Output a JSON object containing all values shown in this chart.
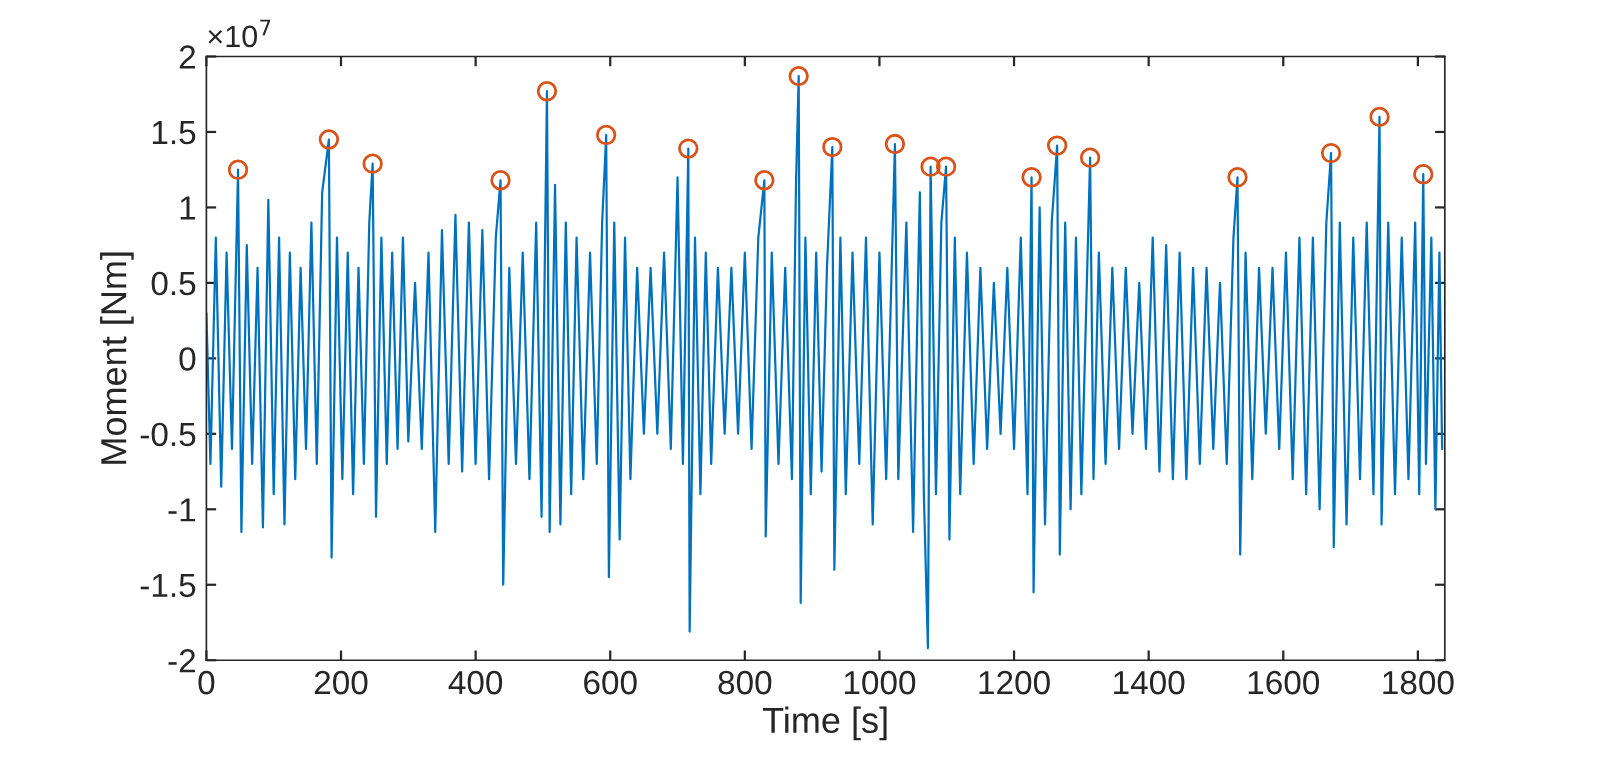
{
  "chart_data": {
    "type": "line",
    "xlabel": "Time [s]",
    "ylabel": "Moment [Nm]",
    "annotations": [
      "×10$^{7}$"
    ],
    "xlim": [
      0,
      1840
    ],
    "xticks": [
      0,
      200,
      400,
      600,
      800,
      1000,
      1200,
      1400,
      1600,
      1800
    ],
    "ylim": [
      -2,
      2
    ],
    "yticks": [
      -2,
      -1.5,
      -1,
      -0.5,
      0,
      0.5,
      1,
      1.5,
      2
    ],
    "grid": false,
    "legend": false,
    "series": [
      {
        "color": "#0072bd",
        "line_style": "solid",
        "x": [
          0,
          6,
          14,
          22,
          30,
          38,
          47,
          52,
          60,
          68,
          76,
          84,
          92,
          100,
          108,
          116,
          124,
          132,
          140,
          148,
          156,
          164,
          172,
          182,
          186,
          194,
          202,
          210,
          218,
          226,
          234,
          242,
          247,
          252,
          260,
          268,
          276,
          284,
          292,
          300,
          310,
          320,
          330,
          340,
          350,
          360,
          370,
          380,
          390,
          400,
          410,
          420,
          430,
          437,
          441,
          450,
          460,
          470,
          480,
          490,
          498,
          506,
          510,
          518,
          526,
          534,
          542,
          550,
          560,
          570,
          580,
          588,
          594,
          598,
          606,
          614,
          622,
          630,
          640,
          650,
          660,
          670,
          680,
          690,
          700,
          708,
          716,
          718,
          726,
          734,
          742,
          750,
          760,
          770,
          780,
          790,
          800,
          810,
          820,
          829,
          831,
          840,
          850,
          860,
          870,
          876,
          880,
          883,
          890,
          898,
          906,
          914,
          922,
          930,
          933,
          942,
          950,
          960,
          970,
          980,
          990,
          1000,
          1010,
          1023,
          1028,
          1040,
          1050,
          1060,
          1066,
          1072,
          1076,
          1084,
          1092,
          1099,
          1104,
          1112,
          1120,
          1130,
          1140,
          1150,
          1160,
          1170,
          1180,
          1190,
          1200,
          1210,
          1220,
          1226,
          1229,
          1238,
          1246,
          1256,
          1264,
          1268,
          1276,
          1284,
          1292,
          1300,
          1313,
          1318,
          1326,
          1336,
          1346,
          1356,
          1366,
          1376,
          1386,
          1396,
          1406,
          1416,
          1426,
          1436,
          1446,
          1456,
          1466,
          1476,
          1486,
          1496,
          1506,
          1516,
          1526,
          1532,
          1536,
          1544,
          1554,
          1564,
          1574,
          1584,
          1594,
          1604,
          1614,
          1624,
          1634,
          1644,
          1654,
          1664,
          1671,
          1675,
          1684,
          1694,
          1704,
          1714,
          1724,
          1734,
          1743,
          1746,
          1756,
          1766,
          1776,
          1786,
          1796,
          1802,
          1808,
          1812,
          1820,
          1826,
          1832,
          1836
        ],
        "values": [
          0.3,
          -0.7,
          0.8,
          -0.85,
          0.7,
          -0.6,
          1.25,
          -1.15,
          0.75,
          -0.7,
          0.6,
          -1.12,
          1.05,
          -0.9,
          0.8,
          -1.1,
          0.7,
          -0.8,
          0.6,
          -0.6,
          0.9,
          -0.7,
          1.1,
          1.45,
          -1.32,
          0.8,
          -0.8,
          0.7,
          -0.9,
          0.6,
          -0.7,
          0.9,
          1.29,
          -1.05,
          0.8,
          -0.7,
          0.7,
          -0.6,
          0.8,
          -0.55,
          0.5,
          -0.6,
          0.7,
          -1.15,
          0.85,
          -0.7,
          0.95,
          -0.75,
          0.9,
          -0.7,
          0.85,
          -0.8,
          0.8,
          1.18,
          -1.5,
          0.6,
          -0.7,
          0.7,
          -0.8,
          0.9,
          -1.05,
          1.77,
          -1.15,
          1.15,
          -1.1,
          0.9,
          -0.9,
          0.8,
          -0.8,
          0.7,
          -0.7,
          0.9,
          1.48,
          -1.45,
          0.9,
          -1.2,
          0.8,
          -0.8,
          0.6,
          -0.5,
          0.6,
          -0.5,
          0.7,
          -0.6,
          1.2,
          -0.7,
          1.39,
          -1.81,
          0.8,
          -0.9,
          0.7,
          -0.7,
          0.6,
          -0.5,
          0.6,
          -0.5,
          0.7,
          -0.6,
          0.8,
          1.18,
          -1.18,
          0.7,
          -0.7,
          0.6,
          -0.8,
          1.15,
          1.87,
          -1.62,
          0.8,
          -0.9,
          0.7,
          -0.75,
          0.6,
          1.4,
          -1.4,
          0.8,
          -0.9,
          0.7,
          -0.7,
          0.8,
          -1.1,
          0.7,
          -0.8,
          1.42,
          -0.8,
          0.9,
          -1.15,
          1.1,
          -0.9,
          -1.92,
          1.27,
          -0.9,
          0.9,
          1.27,
          -1.2,
          0.8,
          -0.9,
          0.7,
          -0.7,
          0.6,
          -0.6,
          0.5,
          -0.5,
          0.6,
          -0.6,
          0.8,
          -0.9,
          1.2,
          -1.55,
          1.0,
          -1.1,
          0.9,
          1.41,
          -1.3,
          0.9,
          -1.0,
          0.8,
          -0.9,
          1.33,
          -0.8,
          0.7,
          -0.7,
          0.6,
          -0.6,
          0.6,
          -0.5,
          0.5,
          -0.6,
          0.8,
          -0.75,
          0.75,
          -0.8,
          0.7,
          -0.8,
          0.6,
          -0.7,
          0.6,
          -0.6,
          0.5,
          -0.7,
          0.8,
          1.2,
          -1.3,
          0.7,
          -0.8,
          0.6,
          -0.5,
          0.6,
          -0.6,
          0.7,
          -0.8,
          0.8,
          -0.9,
          0.8,
          -1.0,
          0.9,
          1.36,
          -1.25,
          0.9,
          -1.1,
          0.8,
          -0.8,
          0.9,
          -0.9,
          1.6,
          -1.1,
          0.9,
          -0.9,
          0.8,
          -0.8,
          0.9,
          -0.9,
          1.22,
          -0.7,
          0.8,
          -1.0,
          0.7,
          -0.6
        ]
      },
      {
        "type": "scatter",
        "color": "#d95319",
        "marker": "circle",
        "x": [
          47,
          182,
          247,
          437,
          506,
          594,
          716,
          829,
          880,
          930,
          1023,
          1076,
          1099,
          1226,
          1264,
          1313,
          1532,
          1671,
          1743,
          1808
        ],
        "values": [
          1.25,
          1.45,
          1.29,
          1.18,
          1.77,
          1.48,
          1.39,
          1.18,
          1.87,
          1.4,
          1.42,
          1.27,
          1.27,
          1.2,
          1.41,
          1.33,
          1.2,
          1.36,
          1.6,
          1.22
        ]
      }
    ]
  }
}
